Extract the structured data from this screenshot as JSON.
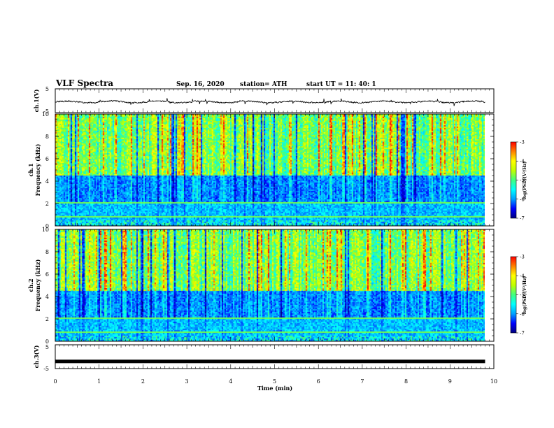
{
  "header": {
    "title": "VLF Spectra",
    "date": "Sep. 16, 2020",
    "station": "station= ATH",
    "start": "start  UT  =   11: 40: 1"
  },
  "colors": {
    "colormap": [
      "#000080",
      "#0000ff",
      "#00a0ff",
      "#00ffff",
      "#40ff80",
      "#c0ff00",
      "#ffff00",
      "#ff8000",
      "#ff0000",
      "#ffffff"
    ],
    "trace": "#000000"
  },
  "chart_data": [
    {
      "id": "ch1-waveform",
      "type": "line",
      "ylabel": "ch.1(V)",
      "ylim": [
        -5,
        5
      ],
      "yticks": [
        "5",
        "-5"
      ],
      "xlim": [
        0,
        10
      ],
      "note_values": "noisy waveform around -0.5 V with spikes to about +/-2 V"
    },
    {
      "id": "ch1-spectrogram",
      "type": "heatmap",
      "ylabel": "ch.1\nFrequency  (kHz)",
      "ylabel_line1": "ch.1",
      "ylabel_line2": "Frequency  (kHz)",
      "ylim": [
        0,
        10
      ],
      "yticks": [
        "0",
        "2",
        "4",
        "6",
        "8",
        "10"
      ],
      "xlim": [
        0,
        9.8
      ],
      "colorbar": {
        "label": "log(PSD)(V²/Hz)",
        "range": [
          -7,
          -3
        ],
        "ticks": [
          "-3",
          "-4",
          "-5",
          "-6",
          "-7"
        ]
      }
    },
    {
      "id": "ch2-spectrogram",
      "type": "heatmap",
      "ylabel_line1": "ch.2",
      "ylabel_line2": "Frequency  (kHz)",
      "ylim": [
        0,
        10
      ],
      "yticks": [
        "0",
        "2",
        "4",
        "6",
        "8",
        "10"
      ],
      "xlim": [
        0,
        9.8
      ],
      "colorbar": {
        "label": "log(PSD)(V²/Hz)",
        "range": [
          -7,
          -3
        ],
        "ticks": [
          "-3",
          "-4",
          "-5",
          "-6",
          "-7"
        ]
      }
    },
    {
      "id": "ch3-waveform",
      "type": "line",
      "ylabel": "ch.3(V)",
      "ylim": [
        -5,
        5
      ],
      "yticks": [
        "5",
        "-5"
      ],
      "xlim": [
        0,
        10
      ],
      "note_values": "flat band near -2 V"
    }
  ],
  "xaxis": {
    "label": "Time  (min)",
    "range": [
      0,
      10
    ],
    "ticks": [
      "0",
      "1",
      "2",
      "3",
      "4",
      "5",
      "6",
      "7",
      "8",
      "9",
      "10"
    ]
  }
}
